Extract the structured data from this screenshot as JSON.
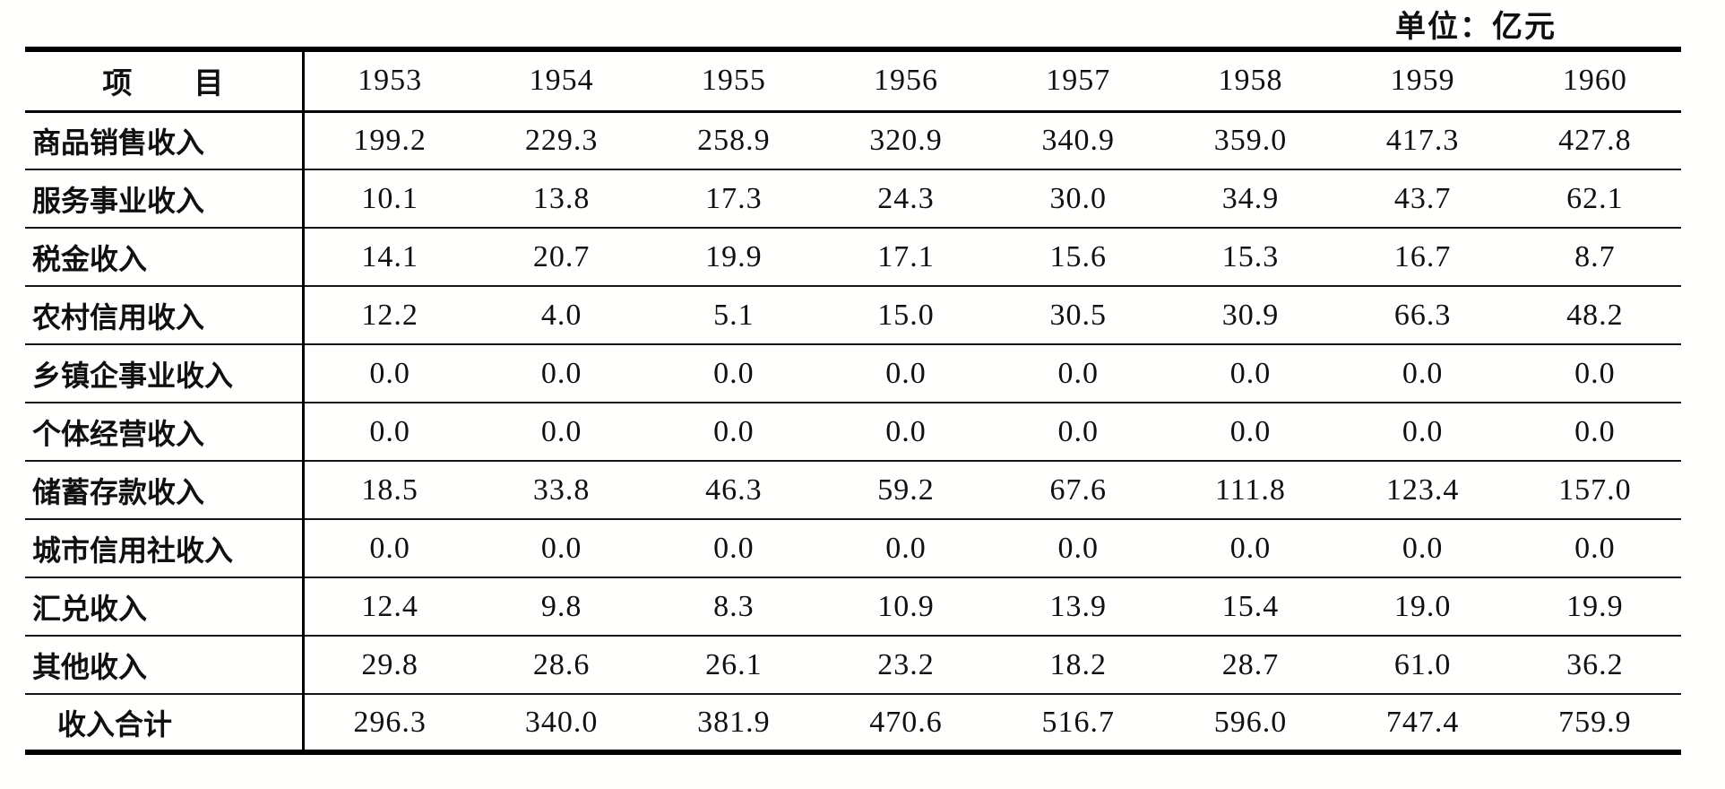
{
  "unit_label": "单位：亿元",
  "table": {
    "header": {
      "item_label": "项　　目",
      "years": [
        "1953",
        "1954",
        "1955",
        "1956",
        "1957",
        "1958",
        "1959",
        "1960"
      ]
    },
    "rows": [
      {
        "label": "商品销售收入",
        "values": [
          "199.2",
          "229.3",
          "258.9",
          "320.9",
          "340.9",
          "359.0",
          "417.3",
          "427.8"
        ],
        "is_total": false
      },
      {
        "label": "服务事业收入",
        "values": [
          "10.1",
          "13.8",
          "17.3",
          "24.3",
          "30.0",
          "34.9",
          "43.7",
          "62.1"
        ],
        "is_total": false
      },
      {
        "label": "税金收入",
        "values": [
          "14.1",
          "20.7",
          "19.9",
          "17.1",
          "15.6",
          "15.3",
          "16.7",
          "8.7"
        ],
        "is_total": false
      },
      {
        "label": "农村信用收入",
        "values": [
          "12.2",
          "4.0",
          "5.1",
          "15.0",
          "30.5",
          "30.9",
          "66.3",
          "48.2"
        ],
        "is_total": false
      },
      {
        "label": "乡镇企事业收入",
        "values": [
          "0.0",
          "0.0",
          "0.0",
          "0.0",
          "0.0",
          "0.0",
          "0.0",
          "0.0"
        ],
        "is_total": false
      },
      {
        "label": "个体经营收入",
        "values": [
          "0.0",
          "0.0",
          "0.0",
          "0.0",
          "0.0",
          "0.0",
          "0.0",
          "0.0"
        ],
        "is_total": false
      },
      {
        "label": "储蓄存款收入",
        "values": [
          "18.5",
          "33.8",
          "46.3",
          "59.2",
          "67.6",
          "111.8",
          "123.4",
          "157.0"
        ],
        "is_total": false
      },
      {
        "label": "城市信用社收入",
        "values": [
          "0.0",
          "0.0",
          "0.0",
          "0.0",
          "0.0",
          "0.0",
          "0.0",
          "0.0"
        ],
        "is_total": false
      },
      {
        "label": "汇兑收入",
        "values": [
          "12.4",
          "9.8",
          "8.3",
          "10.9",
          "13.9",
          "15.4",
          "19.0",
          "19.9"
        ],
        "is_total": false
      },
      {
        "label": "其他收入",
        "values": [
          "29.8",
          "28.6",
          "26.1",
          "23.2",
          "18.2",
          "28.7",
          "61.0",
          "36.2"
        ],
        "is_total": false
      },
      {
        "label": "收入合计",
        "values": [
          "296.3",
          "340.0",
          "381.9",
          "470.6",
          "516.7",
          "596.0",
          "747.4",
          "759.9"
        ],
        "is_total": true
      }
    ]
  }
}
